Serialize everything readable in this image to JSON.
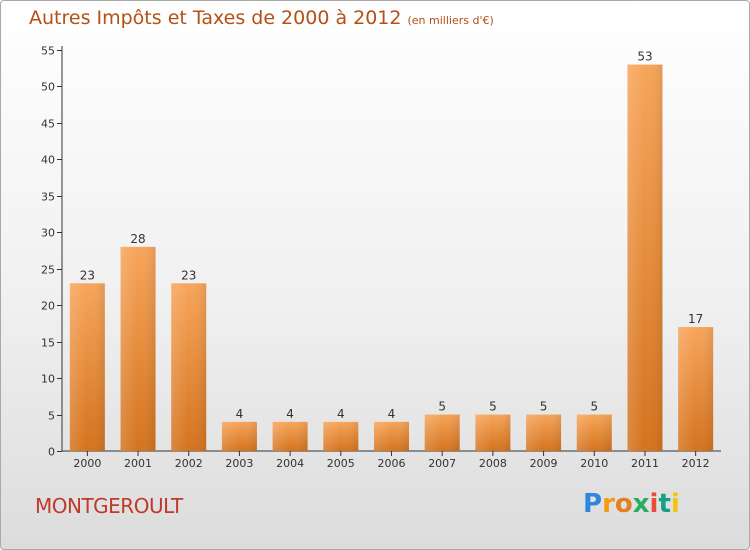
{
  "title": "Autres Impôts et Taxes de 2000 à 2012",
  "subtitle": "(en milliers d'€)",
  "commune": "MONTGEROULT",
  "logo_text": "Proxiti",
  "colors": {
    "title": "#b45014",
    "commune": "#c0392b",
    "bar_top": "#f7a55a",
    "bar_bottom": "#d4731e",
    "axis": "#333333",
    "grid": "#d8d8d8"
  },
  "chart_data": {
    "type": "bar",
    "categories": [
      "2000",
      "2001",
      "2002",
      "2003",
      "2004",
      "2005",
      "2006",
      "2007",
      "2008",
      "2009",
      "2010",
      "2011",
      "2012"
    ],
    "values": [
      23,
      28,
      23,
      4,
      4,
      4,
      4,
      5,
      5,
      5,
      5,
      53,
      17
    ],
    "title": "Autres Impôts et Taxes de 2000 à 2012",
    "subtitle": "(en milliers d'€)",
    "xlabel": "",
    "ylabel": "",
    "ylim": [
      0,
      55
    ],
    "yticks": [
      0,
      5,
      10,
      15,
      20,
      25,
      30,
      35,
      40,
      45,
      50,
      55
    ],
    "grid": false,
    "data_labels": true
  }
}
